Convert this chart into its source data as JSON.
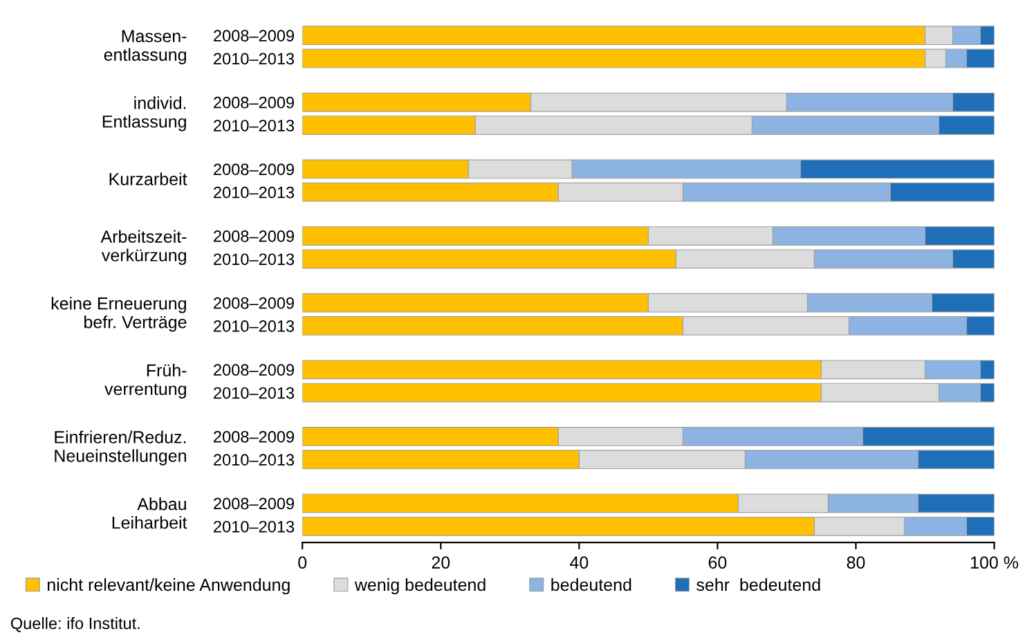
{
  "chart_data": {
    "type": "bar",
    "orientation": "horizontal",
    "stacked": true,
    "categories": [
      "2008–2009",
      "2010–2013",
      "2008–2009",
      "2010–2013",
      "2008–2009",
      "2010–2013",
      "2008–2009",
      "2010–2013",
      "2008–2009",
      "2010–2013",
      "2008–2009",
      "2010–2013",
      "2008–2009",
      "2010–2013",
      "2008–2009",
      "2010–2013"
    ],
    "series": [
      {
        "name": "nicht relevant/keine Anwendung",
        "color": "#ffc000",
        "values": [
          90,
          90,
          33,
          25,
          24,
          37,
          50,
          54,
          50,
          55,
          75,
          75,
          37,
          40,
          63,
          74
        ]
      },
      {
        "name": "wenig bedeutend",
        "color": "#dcdcdc",
        "values": [
          4,
          3,
          37,
          40,
          15,
          18,
          18,
          20,
          23,
          24,
          15,
          17,
          18,
          24,
          13,
          13
        ]
      },
      {
        "name": "bedeutend",
        "color": "#8db3e2",
        "values": [
          4,
          3,
          24,
          27,
          33,
          30,
          22,
          20,
          18,
          17,
          8,
          6,
          26,
          25,
          13,
          9
        ]
      },
      {
        "name": "sehr  bedeutend",
        "color": "#1f6fb8",
        "values": [
          2,
          4,
          6,
          8,
          28,
          15,
          10,
          6,
          9,
          4,
          2,
          2,
          19,
          11,
          11,
          4
        ]
      }
    ],
    "xlim": [
      0,
      100
    ],
    "xticks": [
      0,
      20,
      40,
      60,
      80,
      {
        "value": 100,
        "label": "100 %"
      }
    ],
    "legend": "bottom",
    "grid": false,
    "annotations": [
      "Massen-\nentlassung",
      "individ.\nEntlassung",
      "Kurzarbeit",
      "Arbeitszeit-\nverkürzung",
      "keine Erneuerung\nbefr. Verträge",
      "Früh-\nverrentung",
      "Einfrieren/Reduz.\nNeueinstellungen",
      "Abbau\nLeiharbeit",
      "Quelle: ifo Institut."
    ]
  }
}
